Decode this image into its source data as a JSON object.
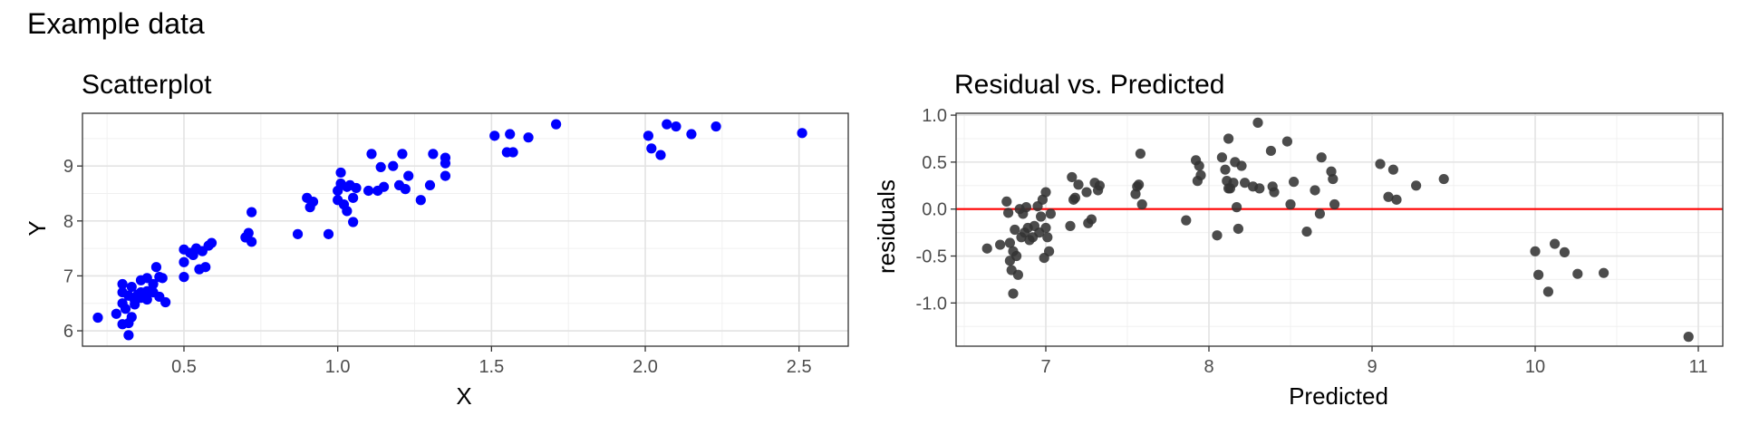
{
  "page": {
    "title": "Example data"
  },
  "chart_data": [
    {
      "type": "scatter",
      "title": "Scatterplot",
      "xlabel": "X",
      "ylabel": "Y",
      "xlim": [
        0.17,
        2.66
      ],
      "ylim": [
        5.72,
        9.96
      ],
      "xticks": [
        0.5,
        1.0,
        1.5,
        2.0,
        2.5
      ],
      "xtick_labels": [
        "0.5",
        "1.0",
        "1.5",
        "2.0",
        "2.5"
      ],
      "yticks": [
        6,
        7,
        8,
        9
      ],
      "ytick_labels": [
        "6",
        "7",
        "8",
        "9"
      ],
      "grid": true,
      "point_color": "#0000ff",
      "points": [
        [
          0.22,
          6.24
        ],
        [
          0.28,
          6.31
        ],
        [
          0.3,
          6.12
        ],
        [
          0.3,
          6.5
        ],
        [
          0.31,
          6.4
        ],
        [
          0.32,
          6.64
        ],
        [
          0.3,
          6.85
        ],
        [
          0.33,
          6.8
        ],
        [
          0.34,
          6.55
        ],
        [
          0.35,
          6.66
        ],
        [
          0.36,
          6.6
        ],
        [
          0.33,
          6.25
        ],
        [
          0.32,
          6.14
        ],
        [
          0.32,
          5.92
        ],
        [
          0.3,
          6.7
        ],
        [
          0.34,
          6.48
        ],
        [
          0.36,
          6.92
        ],
        [
          0.38,
          6.72
        ],
        [
          0.38,
          6.96
        ],
        [
          0.4,
          6.7
        ],
        [
          0.4,
          6.85
        ],
        [
          0.41,
          7.16
        ],
        [
          0.42,
          6.98
        ],
        [
          0.42,
          6.62
        ],
        [
          0.43,
          6.96
        ],
        [
          0.44,
          6.52
        ],
        [
          0.38,
          6.57
        ],
        [
          0.36,
          6.7
        ],
        [
          0.5,
          6.98
        ],
        [
          0.5,
          7.25
        ],
        [
          0.5,
          7.48
        ],
        [
          0.52,
          7.42
        ],
        [
          0.53,
          7.38
        ],
        [
          0.54,
          7.5
        ],
        [
          0.55,
          7.12
        ],
        [
          0.56,
          7.45
        ],
        [
          0.57,
          7.16
        ],
        [
          0.58,
          7.55
        ],
        [
          0.59,
          7.6
        ],
        [
          0.7,
          7.7
        ],
        [
          0.71,
          7.78
        ],
        [
          0.72,
          7.62
        ],
        [
          0.72,
          8.16
        ],
        [
          0.87,
          7.76
        ],
        [
          0.9,
          8.42
        ],
        [
          0.91,
          8.25
        ],
        [
          0.92,
          8.35
        ],
        [
          0.97,
          7.76
        ],
        [
          1.0,
          8.55
        ],
        [
          1.0,
          8.38
        ],
        [
          1.01,
          8.68
        ],
        [
          1.01,
          8.88
        ],
        [
          1.02,
          8.3
        ],
        [
          1.03,
          8.62
        ],
        [
          1.03,
          8.18
        ],
        [
          1.04,
          8.65
        ],
        [
          1.05,
          7.98
        ],
        [
          1.05,
          8.42
        ],
        [
          1.06,
          8.6
        ],
        [
          1.1,
          8.55
        ],
        [
          1.11,
          9.22
        ],
        [
          1.13,
          8.55
        ],
        [
          1.14,
          8.98
        ],
        [
          1.15,
          8.62
        ],
        [
          1.18,
          9.0
        ],
        [
          1.2,
          8.65
        ],
        [
          1.21,
          9.22
        ],
        [
          1.22,
          8.58
        ],
        [
          1.23,
          8.82
        ],
        [
          1.27,
          8.38
        ],
        [
          1.3,
          8.65
        ],
        [
          1.31,
          9.22
        ],
        [
          1.35,
          8.82
        ],
        [
          1.35,
          9.05
        ],
        [
          1.35,
          9.15
        ],
        [
          1.51,
          9.55
        ],
        [
          1.55,
          9.25
        ],
        [
          1.56,
          9.58
        ],
        [
          1.57,
          9.25
        ],
        [
          1.62,
          9.52
        ],
        [
          1.71,
          9.76
        ],
        [
          2.01,
          9.55
        ],
        [
          2.02,
          9.32
        ],
        [
          2.05,
          9.2
        ],
        [
          2.07,
          9.76
        ],
        [
          2.1,
          9.72
        ],
        [
          2.15,
          9.58
        ],
        [
          2.23,
          9.72
        ],
        [
          2.51,
          9.6
        ]
      ]
    },
    {
      "type": "scatter",
      "title": "Residual vs. Predicted",
      "xlabel": "Predicted",
      "ylabel": "residuals",
      "xlim": [
        6.45,
        11.15
      ],
      "ylim": [
        -1.46,
        1.02
      ],
      "xticks": [
        7,
        8,
        9,
        10,
        11
      ],
      "xtick_labels": [
        "7",
        "8",
        "9",
        "10",
        "11"
      ],
      "yticks": [
        -1.0,
        -0.5,
        0.0,
        0.5,
        1.0
      ],
      "ytick_labels": [
        "-1.0",
        "-0.5",
        "0.0",
        "0.5",
        "1.0"
      ],
      "grid": true,
      "point_color": "#333333",
      "reference_line": {
        "y": 0,
        "color": "#ff0000"
      },
      "points": [
        [
          6.64,
          -0.42
        ],
        [
          6.72,
          -0.38
        ],
        [
          6.76,
          0.08
        ],
        [
          6.77,
          -0.04
        ],
        [
          6.78,
          -0.36
        ],
        [
          6.78,
          -0.55
        ],
        [
          6.79,
          -0.65
        ],
        [
          6.8,
          -0.9
        ],
        [
          6.8,
          -0.45
        ],
        [
          6.81,
          -0.22
        ],
        [
          6.82,
          -0.5
        ],
        [
          6.83,
          -0.7
        ],
        [
          6.84,
          0.0
        ],
        [
          6.85,
          -0.3
        ],
        [
          6.86,
          -0.05
        ],
        [
          6.87,
          -0.25
        ],
        [
          6.88,
          0.02
        ],
        [
          6.89,
          -0.2
        ],
        [
          6.9,
          -0.33
        ],
        [
          6.92,
          -0.3
        ],
        [
          6.93,
          -0.18
        ],
        [
          6.95,
          0.03
        ],
        [
          6.96,
          -0.25
        ],
        [
          6.97,
          -0.08
        ],
        [
          6.98,
          0.1
        ],
        [
          6.99,
          -0.52
        ],
        [
          7.0,
          0.18
        ],
        [
          7.0,
          -0.2
        ],
        [
          7.01,
          -0.3
        ],
        [
          7.02,
          -0.45
        ],
        [
          7.03,
          -0.05
        ],
        [
          7.15,
          -0.18
        ],
        [
          7.16,
          0.34
        ],
        [
          7.17,
          0.1
        ],
        [
          7.18,
          0.12
        ],
        [
          7.2,
          0.26
        ],
        [
          7.25,
          0.18
        ],
        [
          7.26,
          -0.15
        ],
        [
          7.28,
          -0.11
        ],
        [
          7.3,
          0.28
        ],
        [
          7.32,
          0.2
        ],
        [
          7.33,
          0.25
        ],
        [
          7.55,
          0.16
        ],
        [
          7.56,
          0.24
        ],
        [
          7.57,
          0.26
        ],
        [
          7.58,
          0.59
        ],
        [
          7.59,
          0.05
        ],
        [
          7.86,
          -0.12
        ],
        [
          7.92,
          0.52
        ],
        [
          7.93,
          0.3
        ],
        [
          7.94,
          0.46
        ],
        [
          7.95,
          0.36
        ],
        [
          8.05,
          -0.28
        ],
        [
          8.08,
          0.55
        ],
        [
          8.1,
          0.42
        ],
        [
          8.11,
          0.3
        ],
        [
          8.12,
          0.22
        ],
        [
          8.12,
          0.75
        ],
        [
          8.13,
          0.22
        ],
        [
          8.15,
          0.28
        ],
        [
          8.16,
          0.5
        ],
        [
          8.17,
          0.02
        ],
        [
          8.18,
          -0.21
        ],
        [
          8.2,
          0.46
        ],
        [
          8.22,
          0.28
        ],
        [
          8.27,
          0.24
        ],
        [
          8.3,
          0.92
        ],
        [
          8.31,
          0.22
        ],
        [
          8.38,
          0.62
        ],
        [
          8.39,
          0.24
        ],
        [
          8.4,
          0.18
        ],
        [
          8.48,
          0.72
        ],
        [
          8.5,
          0.05
        ],
        [
          8.52,
          0.29
        ],
        [
          8.6,
          -0.24
        ],
        [
          8.65,
          0.2
        ],
        [
          8.68,
          -0.05
        ],
        [
          8.69,
          0.55
        ],
        [
          8.75,
          0.4
        ],
        [
          8.76,
          0.32
        ],
        [
          8.77,
          0.05
        ],
        [
          9.05,
          0.48
        ],
        [
          9.1,
          0.13
        ],
        [
          9.13,
          0.42
        ],
        [
          9.15,
          0.1
        ],
        [
          9.27,
          0.25
        ],
        [
          9.44,
          0.32
        ],
        [
          10.0,
          -0.45
        ],
        [
          10.02,
          -0.7
        ],
        [
          10.08,
          -0.88
        ],
        [
          10.12,
          -0.37
        ],
        [
          10.18,
          -0.46
        ],
        [
          10.26,
          -0.69
        ],
        [
          10.42,
          -0.68
        ],
        [
          10.94,
          -1.36
        ]
      ]
    }
  ]
}
